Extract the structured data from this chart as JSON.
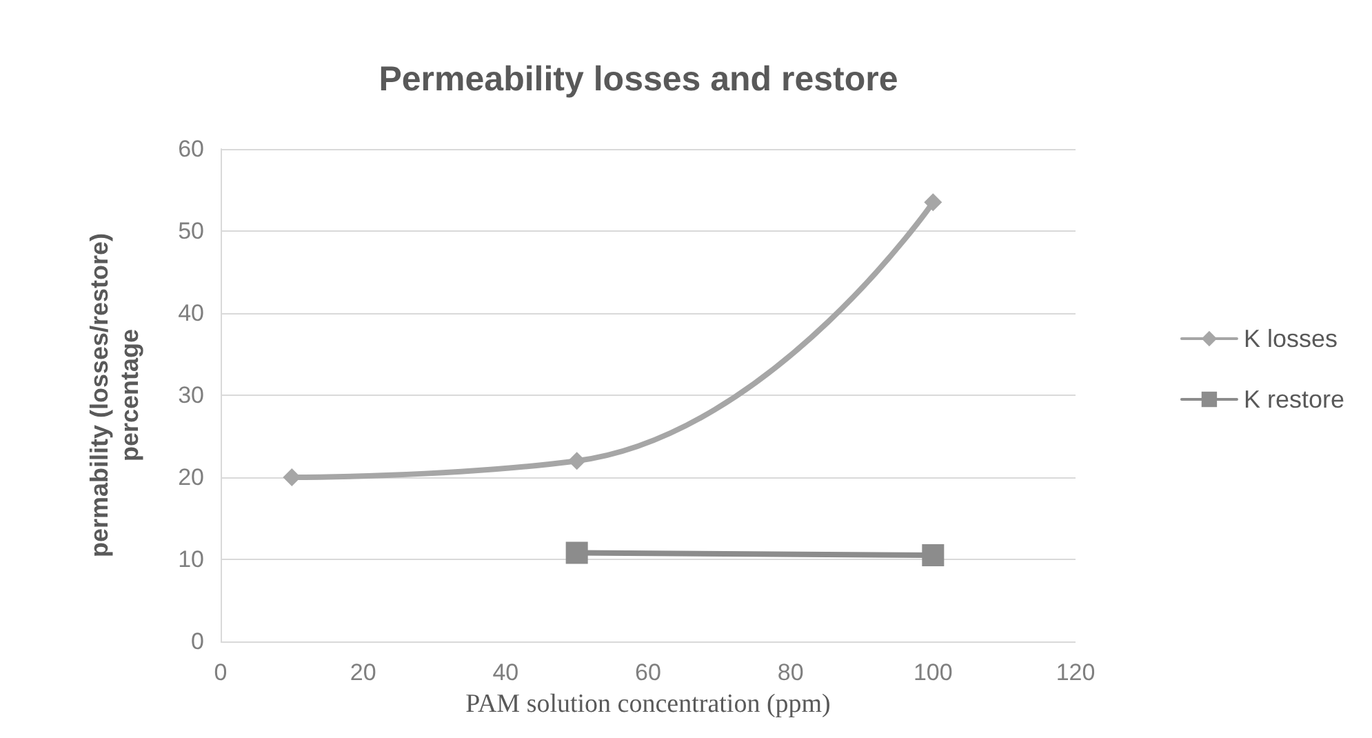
{
  "chart_data": {
    "type": "line",
    "title": "Permeability losses and restore",
    "xlabel": "PAM solution concentration (ppm)",
    "ylabel": "permability (losses/restore)\npercentage",
    "series": [
      {
        "name": "K losses",
        "color": "#a6a6a6",
        "marker": "diamond",
        "x": [
          10,
          50,
          100
        ],
        "values": [
          20,
          22,
          53.5
        ]
      },
      {
        "name": "K restore",
        "color": "#8c8c8c",
        "marker": "square",
        "x": [
          50,
          100
        ],
        "values": [
          10.8,
          10.5
        ]
      }
    ],
    "xlim": [
      0,
      120
    ],
    "xticks": [
      0,
      20,
      40,
      60,
      80,
      100,
      120
    ],
    "ylim": [
      0,
      60
    ],
    "yticks": [
      0,
      10,
      20,
      30,
      40,
      50,
      60
    ],
    "grid": "y",
    "legend": "right"
  }
}
